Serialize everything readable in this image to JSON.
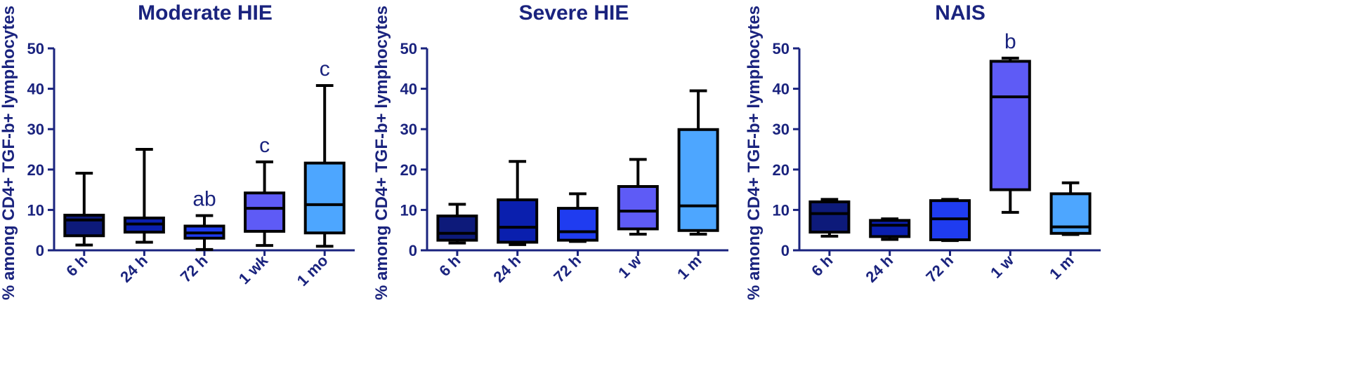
{
  "chart_data": [
    {
      "type": "box",
      "title": "Moderate HIE",
      "ylabel": "% among CD4+ TGF-b+ lymphocytes",
      "ylim": [
        0,
        50
      ],
      "yticks": [
        "0",
        "10",
        "20",
        "30",
        "40",
        "50"
      ],
      "categories": [
        "6 h",
        "24 h",
        "72 h",
        "1 wk",
        "1 mo"
      ],
      "boxes": [
        {
          "min": 1.3,
          "q1": 3.6,
          "median": 7.5,
          "q3": 8.7,
          "max": 19.1,
          "color": "#0d1a7a",
          "label": ""
        },
        {
          "min": 2.0,
          "q1": 4.5,
          "median": 6.5,
          "q3": 8.0,
          "max": 25.0,
          "color": "#0a1fae",
          "label": ""
        },
        {
          "min": 0.2,
          "q1": 3.0,
          "median": 4.3,
          "q3": 6.0,
          "max": 8.6,
          "color": "#1f3cf0",
          "label": "ab"
        },
        {
          "min": 1.2,
          "q1": 4.7,
          "median": 10.4,
          "q3": 14.2,
          "max": 21.9,
          "color": "#5e5bf6",
          "label": "c"
        },
        {
          "min": 1.0,
          "q1": 4.3,
          "median": 11.3,
          "q3": 21.6,
          "max": 40.8,
          "color": "#4da6ff",
          "label": "c"
        }
      ]
    },
    {
      "type": "box",
      "title": "Severe HIE",
      "ylabel": "% among CD4+ TGF-b+ lymphocytes",
      "ylim": [
        0,
        50
      ],
      "yticks": [
        "0",
        "10",
        "20",
        "30",
        "40",
        "50"
      ],
      "categories": [
        "6 h",
        "24 h",
        "72 h",
        "1 w",
        "1 m"
      ],
      "boxes": [
        {
          "min": 1.8,
          "q1": 2.5,
          "median": 4.2,
          "q3": 8.5,
          "max": 11.4,
          "color": "#0d1a7a",
          "label": ""
        },
        {
          "min": 1.4,
          "q1": 2.0,
          "median": 5.7,
          "q3": 12.5,
          "max": 22.0,
          "color": "#0a1fae",
          "label": ""
        },
        {
          "min": 2.2,
          "q1": 2.5,
          "median": 4.6,
          "q3": 10.4,
          "max": 14.0,
          "color": "#1f3cf0",
          "label": ""
        },
        {
          "min": 4.0,
          "q1": 5.3,
          "median": 9.7,
          "q3": 15.8,
          "max": 22.5,
          "color": "#5e5bf6",
          "label": ""
        },
        {
          "min": 4.0,
          "q1": 4.9,
          "median": 11.0,
          "q3": 29.9,
          "max": 39.5,
          "color": "#4da6ff",
          "label": ""
        }
      ]
    },
    {
      "type": "box",
      "title": "NAIS",
      "ylabel": "% among CD4+ TGF-b+ lymphocytes",
      "ylim": [
        0,
        50
      ],
      "yticks": [
        "0",
        "10",
        "20",
        "30",
        "40",
        "50"
      ],
      "categories": [
        "6 h",
        "24 h",
        "72 h",
        "1 w",
        "1 m"
      ],
      "boxes": [
        {
          "min": 3.5,
          "q1": 4.5,
          "median": 9.1,
          "q3": 12.0,
          "max": 12.6,
          "color": "#0d1a7a",
          "label": ""
        },
        {
          "min": 2.7,
          "q1": 3.4,
          "median": 6.2,
          "q3": 7.4,
          "max": 7.8,
          "color": "#0a1fae",
          "label": ""
        },
        {
          "min": 2.4,
          "q1": 2.6,
          "median": 7.8,
          "q3": 12.3,
          "max": 12.6,
          "color": "#1f3cf0",
          "label": ""
        },
        {
          "min": 9.4,
          "q1": 15.0,
          "median": 38.0,
          "q3": 46.8,
          "max": 47.6,
          "color": "#5e5bf6",
          "label": "b"
        },
        {
          "min": 3.9,
          "q1": 4.2,
          "median": 5.8,
          "q3": 14.0,
          "max": 16.7,
          "color": "#4da6ff",
          "label": ""
        }
      ]
    }
  ]
}
